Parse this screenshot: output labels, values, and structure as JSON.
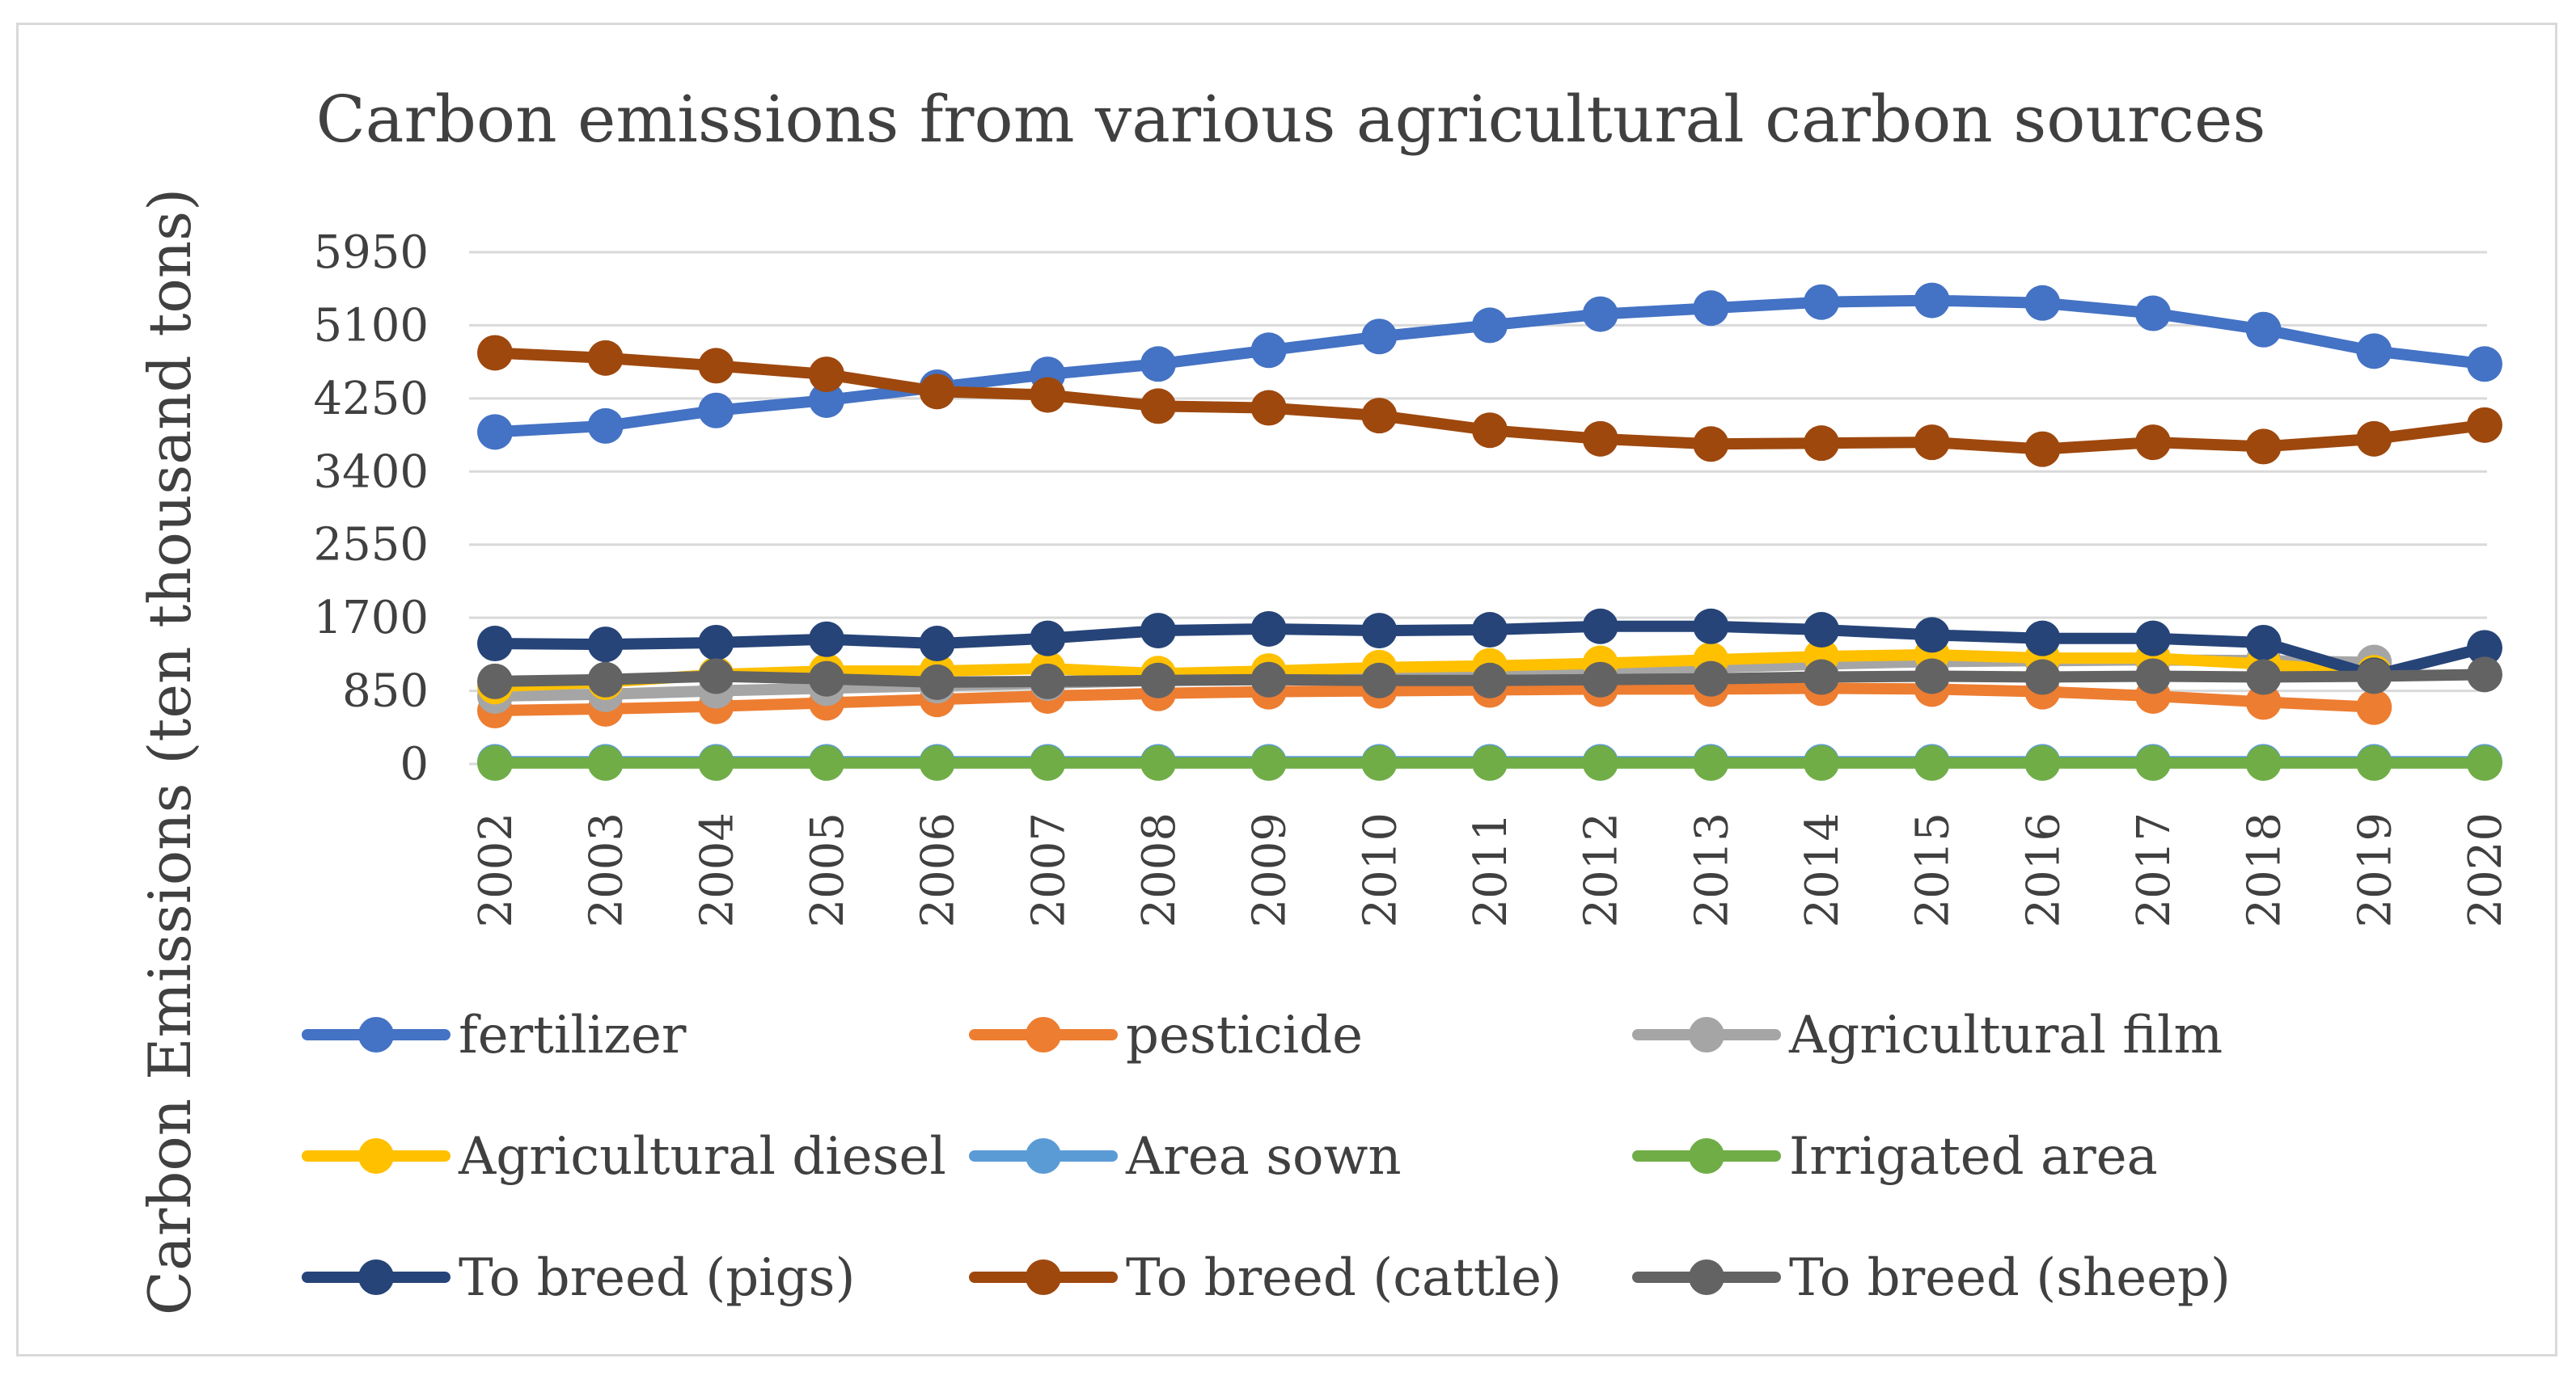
{
  "chart_data": {
    "type": "line",
    "title": "Carbon emissions from various agricultural carbon sources",
    "ylabel": "Carbon Emissions (ten thousand tons)",
    "xlabel": "",
    "ylim": [
      0,
      5950
    ],
    "yticks": [
      "0",
      "850",
      "1700",
      "2550",
      "3400",
      "4250",
      "5100",
      "5950"
    ],
    "grid": true,
    "legend_position": "bottom",
    "categories": [
      "2002",
      "2003",
      "2004",
      "2005",
      "2006",
      "2007",
      "2008",
      "2009",
      "2010",
      "2011",
      "2012",
      "2013",
      "2014",
      "2015",
      "2016",
      "2017",
      "2018",
      "2019",
      "2020"
    ],
    "series": [
      {
        "name": "fertilizer",
        "color": "#4472c4",
        "values": [
          3860,
          3930,
          4110,
          4230,
          4380,
          4530,
          4650,
          4810,
          4970,
          5100,
          5230,
          5300,
          5370,
          5390,
          5360,
          5240,
          5050,
          4800,
          4650
        ]
      },
      {
        "name": "pesticide",
        "color": "#ed7d31",
        "values": [
          620,
          640,
          670,
          710,
          750,
          790,
          820,
          840,
          850,
          860,
          870,
          870,
          880,
          870,
          840,
          790,
          720,
          660,
          null
        ]
      },
      {
        "name": "Agricultural film",
        "color": "#a5a5a5",
        "values": [
          790,
          810,
          850,
          880,
          910,
          940,
          970,
          1000,
          1030,
          1060,
          1090,
          1120,
          1160,
          1190,
          1200,
          1210,
          1200,
          1180,
          null
        ]
      },
      {
        "name": "Agricultural diesel",
        "color": "#ffc000",
        "values": [
          900,
          950,
          1040,
          1080,
          1080,
          1110,
          1050,
          1080,
          1120,
          1140,
          1170,
          1210,
          1250,
          1270,
          1230,
          1230,
          1160,
          1060,
          null
        ]
      },
      {
        "name": "Area sown",
        "color": "#5b9bd5",
        "values": [
          25,
          25,
          25,
          25,
          25,
          25,
          25,
          25,
          25,
          25,
          25,
          25,
          25,
          25,
          25,
          25,
          25,
          25,
          25
        ]
      },
      {
        "name": "Irrigated area",
        "color": "#70ad47",
        "values": [
          10,
          10,
          10,
          10,
          10,
          10,
          10,
          10,
          10,
          10,
          10,
          10,
          10,
          10,
          10,
          10,
          10,
          10,
          10
        ]
      },
      {
        "name": "To breed (pigs)",
        "color": "#264478",
        "values": [
          1400,
          1390,
          1410,
          1450,
          1400,
          1460,
          1550,
          1570,
          1550,
          1560,
          1600,
          1600,
          1560,
          1500,
          1460,
          1460,
          1410,
          1030,
          1350
        ]
      },
      {
        "name": "To breed (cattle)",
        "color": "#9e480e",
        "values": [
          4780,
          4720,
          4630,
          4530,
          4330,
          4290,
          4160,
          4140,
          4050,
          3880,
          3780,
          3720,
          3730,
          3740,
          3660,
          3740,
          3690,
          3780,
          3940
        ]
      },
      {
        "name": "To breed (sheep)",
        "color": "#636363",
        "values": [
          960,
          980,
          1020,
          990,
          950,
          960,
          970,
          980,
          970,
          970,
          980,
          990,
          1010,
          1020,
          1010,
          1020,
          1010,
          1020,
          1040
        ]
      }
    ]
  }
}
